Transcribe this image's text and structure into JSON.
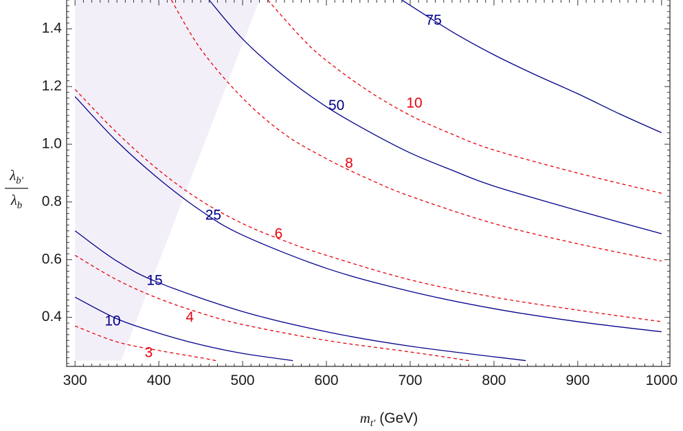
{
  "chart_data": {
    "type": "line",
    "title": "",
    "xlabel": {
      "symbol": "m",
      "subscript": "t'",
      "unit": "(GeV)"
    },
    "ylabel": {
      "numerator": "λ",
      "numerator_sub": "b'",
      "denominator": "λ",
      "denominator_sub": "b"
    },
    "xlim": [
      290,
      1010
    ],
    "ylim": [
      0.23,
      1.5
    ],
    "xticks": [
      "300",
      "400",
      "500",
      "600",
      "700",
      "800",
      "900",
      "1000"
    ],
    "yticks": [
      "0.4",
      "0.6",
      "0.8",
      "1.0",
      "1.2",
      "1.4"
    ],
    "grid": false,
    "colors": {
      "solid": "#00008b",
      "dashed": "#e8000b",
      "shade": "#f3eff8",
      "frame": "#222222"
    },
    "shaded_region": {
      "polygon": [
        [
          300,
          0.25
        ],
        [
          355,
          0.25
        ],
        [
          520,
          1.5
        ],
        [
          300,
          1.5
        ]
      ]
    },
    "series": [
      {
        "label": "10",
        "style": "solid",
        "x": [
          300,
          350,
          400,
          450,
          500,
          560
        ],
        "y": [
          0.47,
          0.395,
          0.345,
          0.305,
          0.275,
          0.25
        ],
        "label_at": [
          345,
          0.385
        ]
      },
      {
        "label": "15",
        "style": "solid",
        "x": [
          300,
          350,
          400,
          500,
          600,
          700,
          838
        ],
        "y": [
          0.7,
          0.595,
          0.52,
          0.42,
          0.35,
          0.3,
          0.25
        ],
        "label_at": [
          395,
          0.525
        ]
      },
      {
        "label": "25",
        "style": "solid",
        "x": [
          300,
          350,
          400,
          450,
          500,
          600,
          700,
          800,
          900,
          1000
        ],
        "y": [
          1.165,
          1.01,
          0.88,
          0.77,
          0.685,
          0.57,
          0.49,
          0.43,
          0.385,
          0.35
        ],
        "label_at": [
          465,
          0.752
        ]
      },
      {
        "label": "50",
        "style": "solid",
        "x": [
          460,
          500,
          550,
          600,
          650,
          700,
          750,
          800,
          900,
          1000
        ],
        "y": [
          1.5,
          1.365,
          1.235,
          1.13,
          1.045,
          0.97,
          0.91,
          0.855,
          0.77,
          0.69
        ],
        "label_at": [
          612,
          1.132
        ]
      },
      {
        "label": "75",
        "style": "solid",
        "x": [
          690,
          750,
          800,
          850,
          900,
          950,
          1000
        ],
        "y": [
          1.5,
          1.39,
          1.31,
          1.24,
          1.175,
          1.105,
          1.04
        ],
        "label_at": [
          728,
          1.428
        ]
      },
      {
        "label": "3",
        "style": "dashed",
        "x": [
          300,
          350,
          400,
          450,
          468
        ],
        "y": [
          0.37,
          0.315,
          0.285,
          0.26,
          0.25
        ],
        "label_at": [
          388,
          0.275
        ]
      },
      {
        "label": "4",
        "style": "dashed",
        "x": [
          300,
          350,
          400,
          450,
          500,
          600,
          700,
          770
        ],
        "y": [
          0.615,
          0.53,
          0.465,
          0.415,
          0.375,
          0.32,
          0.28,
          0.25
        ],
        "label_at": [
          437,
          0.398
        ]
      },
      {
        "label": "6",
        "style": "dashed",
        "x": [
          300,
          350,
          400,
          450,
          500,
          550,
          600,
          700,
          800,
          900,
          1000
        ],
        "y": [
          1.19,
          1.04,
          0.91,
          0.805,
          0.725,
          0.665,
          0.615,
          0.53,
          0.47,
          0.425,
          0.385
        ],
        "label_at": [
          543,
          0.688
        ]
      },
      {
        "label": "8",
        "style": "dashed",
        "x": [
          415,
          450,
          500,
          550,
          600,
          650,
          700,
          800,
          900,
          1000
        ],
        "y": [
          1.5,
          1.33,
          1.16,
          1.035,
          0.95,
          0.88,
          0.82,
          0.725,
          0.655,
          0.595
        ],
        "label_at": [
          627,
          0.932
        ]
      },
      {
        "label": "10",
        "style": "dashed",
        "x": [
          530,
          570,
          600,
          650,
          700,
          750,
          800,
          900,
          1000
        ],
        "y": [
          1.5,
          1.37,
          1.29,
          1.185,
          1.1,
          1.035,
          0.98,
          0.9,
          0.83
        ],
        "label_at": [
          705,
          1.14
        ]
      }
    ]
  }
}
